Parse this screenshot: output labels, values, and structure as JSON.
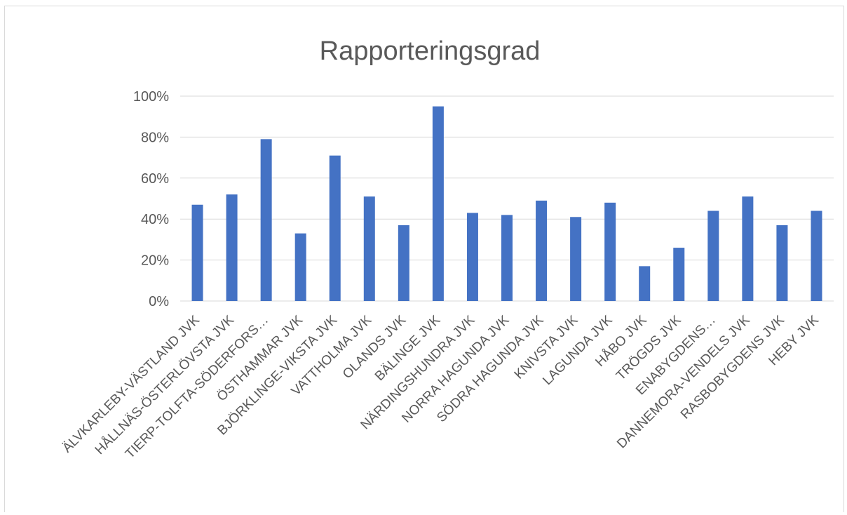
{
  "chart_data": {
    "type": "bar",
    "title": "Rapporteringsgrad",
    "xlabel": "",
    "ylabel": "",
    "ylim": [
      0,
      100
    ],
    "y_ticks": [
      "0%",
      "20%",
      "40%",
      "60%",
      "80%",
      "100%"
    ],
    "y_tick_values": [
      0,
      20,
      40,
      60,
      80,
      100
    ],
    "grid": true,
    "legend": "none",
    "bar_color": "#4472C4",
    "categories": [
      "ÄLVKARLEBY-VÄSTLAND JVK",
      "HÅLLNÄS-ÖSTERLÖVSTA JVK",
      "TIERP-TOLFTA-SÖDERFORS…",
      "ÖSTHAMMAR JVK",
      "BJÖRKLINGE-VIKSTA JVK",
      "VATTHOLMA JVK",
      "OLANDS JVK",
      "BÄLINGE JVK",
      "NÄRDINGSHUNDRA JVK",
      "NORRA HAGUNDA JVK",
      "SÖDRA HAGUNDA JVK",
      "KNIVSTA JVK",
      "LAGUNDA JVK",
      "HÅBO JVK",
      "TRÖGDS JVK",
      "ENABYGDENS…",
      "DANNEMORA-VENDELS JVK",
      "RASBOBYGDENS JVK",
      "HEBY JVK"
    ],
    "values": [
      47,
      52,
      79,
      33,
      71,
      51,
      37,
      95,
      43,
      42,
      49,
      41,
      48,
      17,
      26,
      44,
      51,
      37,
      44
    ]
  }
}
